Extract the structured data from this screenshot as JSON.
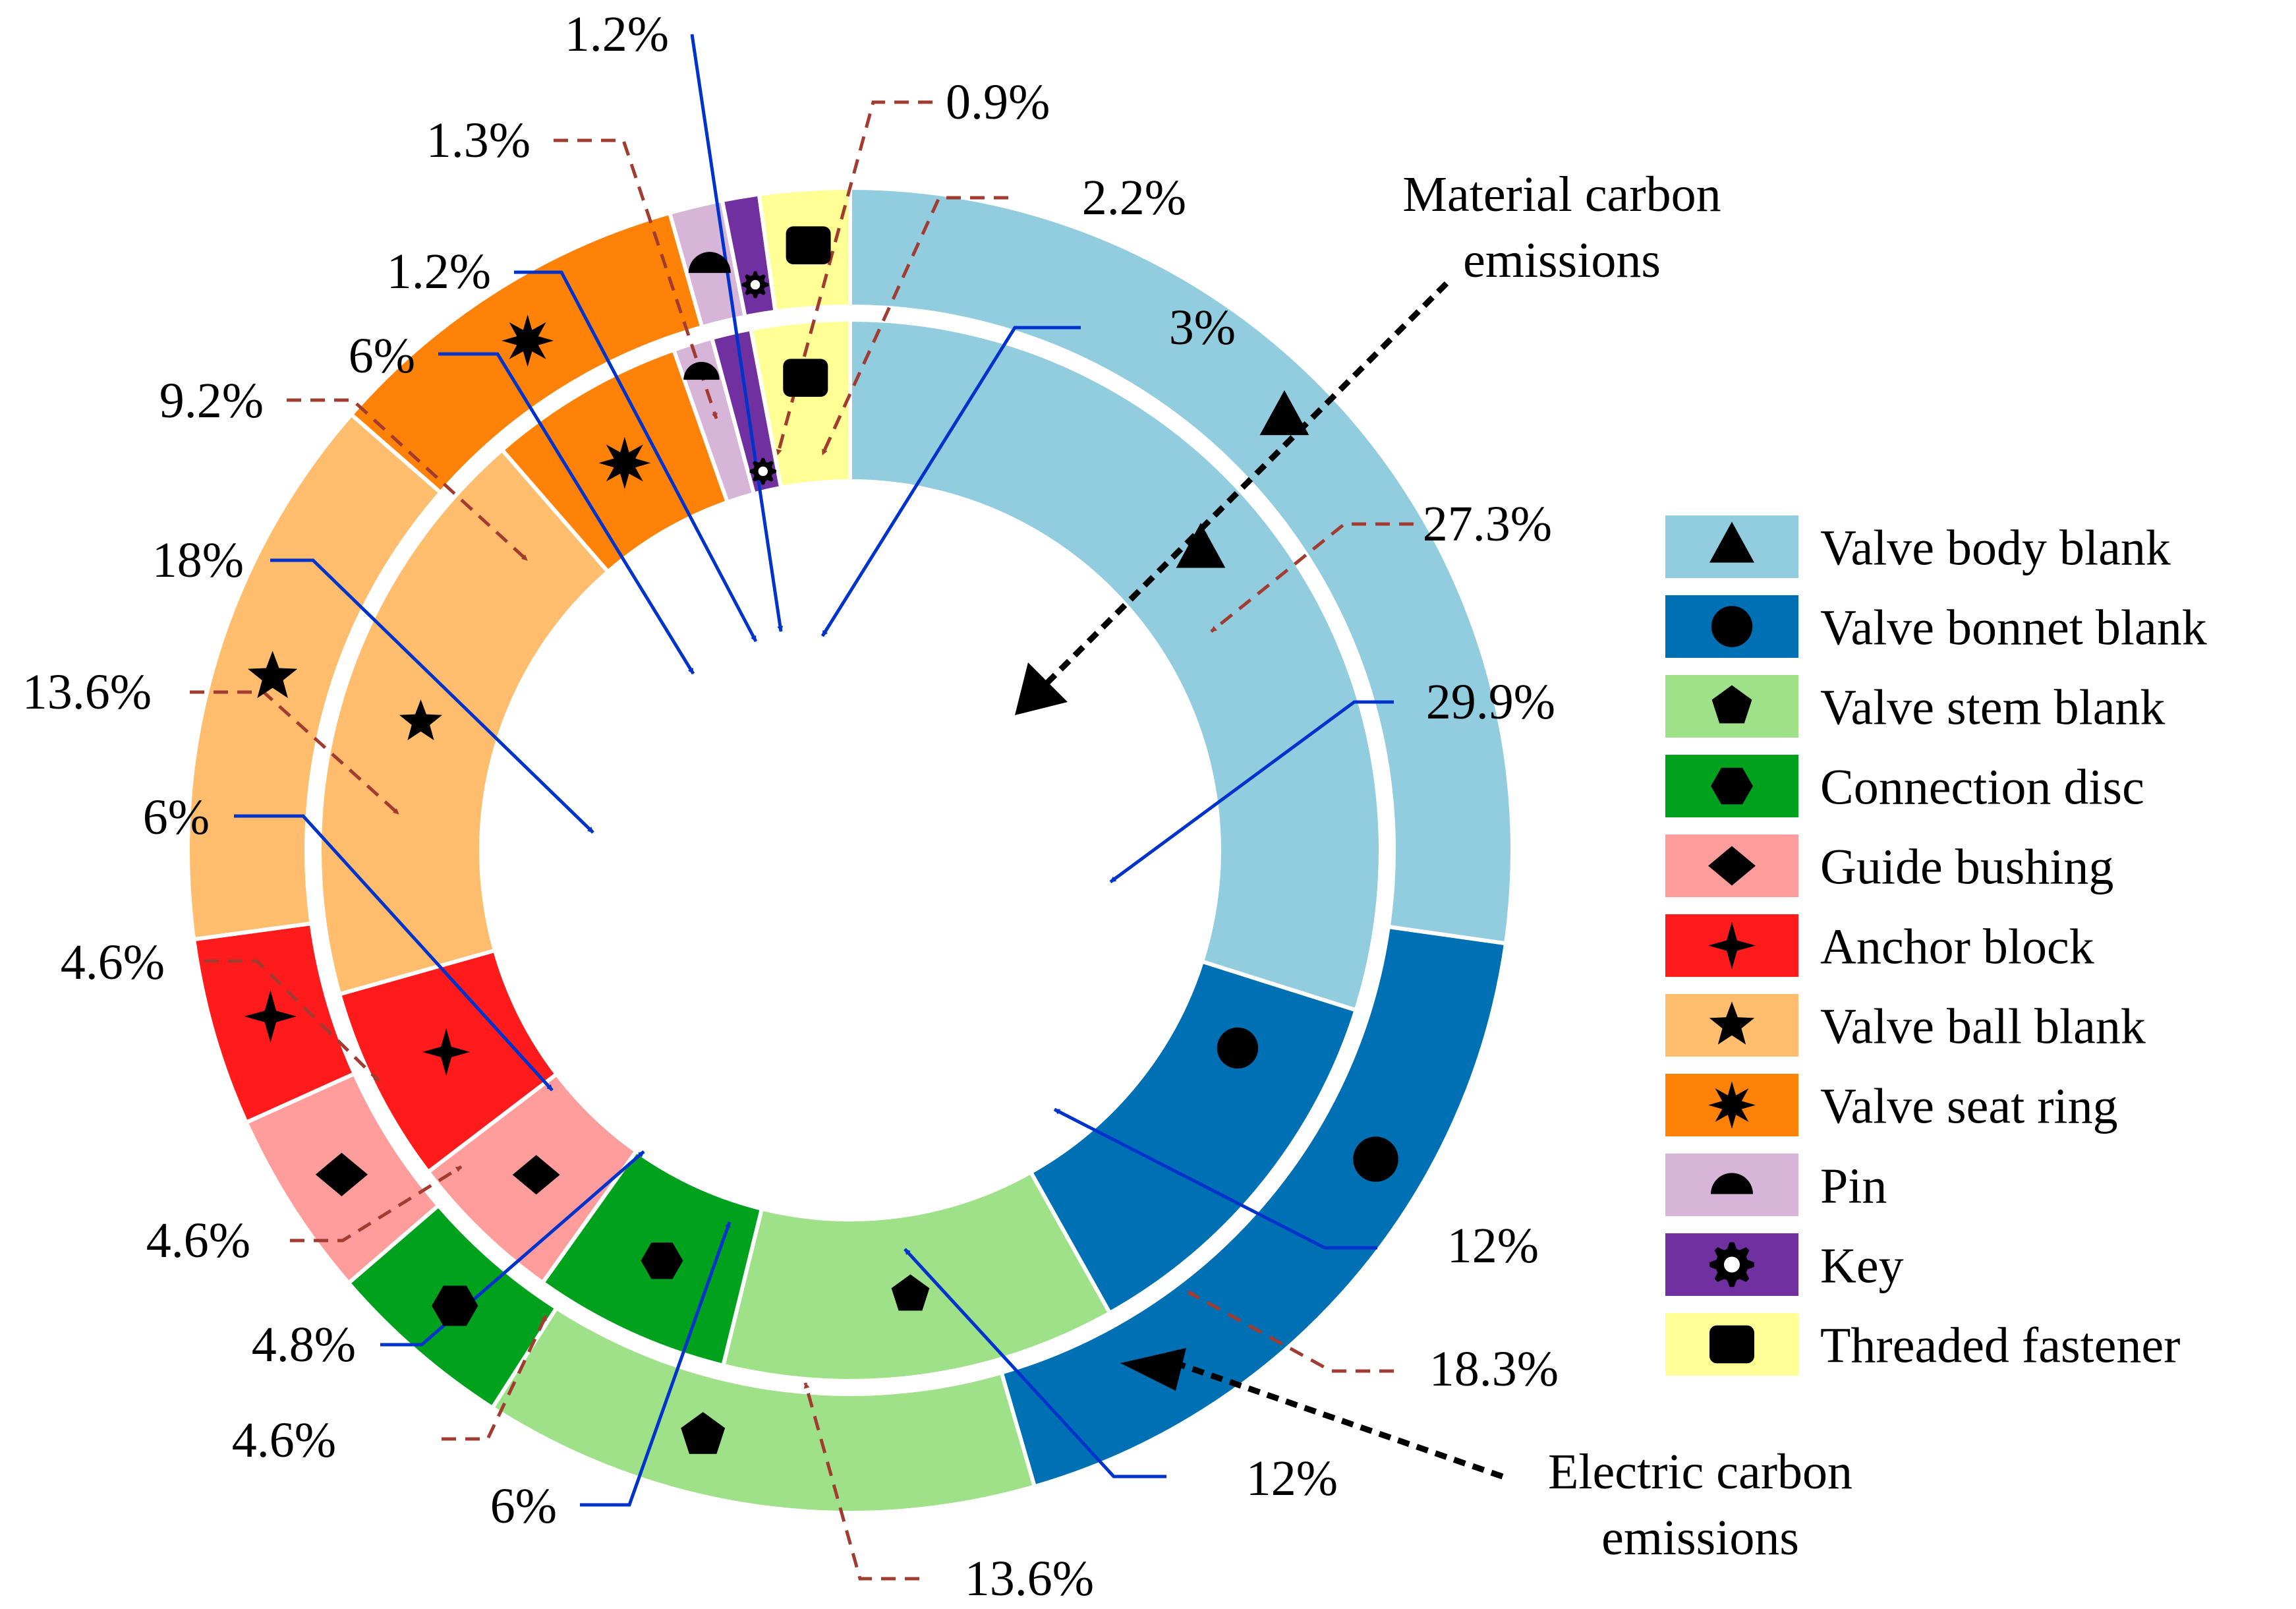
{
  "chart_data": {
    "type": "pie",
    "variant": "nested-donut",
    "categories": [
      "Valve body blank",
      "Valve bonnet blank",
      "Valve stem blank",
      "Connection disc",
      "Guide bushing",
      "Anchor block",
      "Valve ball blank",
      "Valve seat ring",
      "Pin",
      "Key",
      "Threaded fastener"
    ],
    "colors": [
      "#92cddf",
      "#0070b4",
      "#9ee189",
      "#00a21d",
      "#ff9d9d",
      "#ff1b1b",
      "#ffbd6d",
      "#ff8208",
      "#d6b5d8",
      "#7030a0",
      "#ffff96"
    ],
    "markers": [
      "triangle",
      "circle",
      "pentagon",
      "hexagon",
      "diamond",
      "four-point-star",
      "five-point-star",
      "eight-point-star",
      "semicircle",
      "gear",
      "rounded-square"
    ],
    "series": [
      {
        "name": "Electric carbon emissions",
        "ring": "outer",
        "values": [
          27.3,
          18.3,
          13.6,
          4.6,
          4.6,
          4.6,
          13.6,
          9.2,
          1.3,
          0.9,
          2.2
        ],
        "labels": [
          "27.3%",
          "18.3%",
          "13.6%",
          "4.6%",
          "4.6%",
          "4.6%",
          "13.6%",
          "9.2%",
          "1.3%",
          "0.9%",
          "2.2%"
        ]
      },
      {
        "name": "Material carbon emissions",
        "ring": "inner",
        "values": [
          29.9,
          12,
          12,
          6,
          4.8,
          6,
          18,
          6,
          1.2,
          1.2,
          3
        ],
        "labels": [
          "29.9%",
          "12%",
          "12%",
          "6%",
          "4.8%",
          "6%",
          "18%",
          "6%",
          "1.2%",
          "1.2%",
          "3%"
        ]
      }
    ],
    "annotations": {
      "material": "Material carbon emissions",
      "electric": "Electric carbon emissions"
    },
    "legend_position": "right"
  }
}
